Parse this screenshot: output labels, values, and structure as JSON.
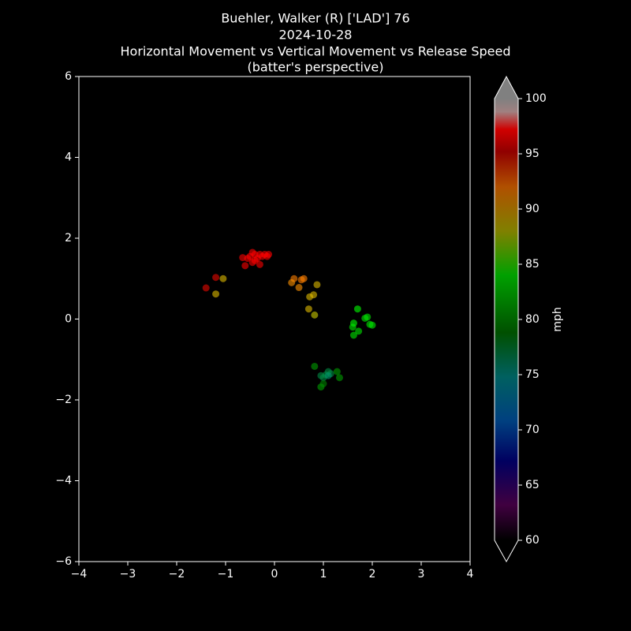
{
  "chart_data": {
    "type": "scatter",
    "title_lines": [
      "Buehler, Walker (R) ['LAD'] 76",
      "2024-10-28",
      "Horizontal Movement vs Vertical Movement vs Release Speed",
      "(batter's perspective)"
    ],
    "x": [
      -0.65,
      -0.6,
      -0.55,
      -0.5,
      -0.45,
      -0.4,
      -0.4,
      -0.35,
      -0.3,
      -0.3,
      -0.25,
      -0.2,
      -0.15,
      -0.12,
      -0.45,
      -1.4,
      -1.2,
      -1.05,
      -1.2,
      0.4,
      0.6,
      0.55,
      0.35,
      0.5,
      0.87,
      0.8,
      0.72,
      0.7,
      0.82,
      1.7,
      1.85,
      1.9,
      1.95,
      2.0,
      1.62,
      1.6,
      1.72,
      1.62,
      0.82,
      0.95,
      1.0,
      1.05,
      1.1,
      1.15,
      1.28,
      1.33,
      0.95,
      1.0,
      1.1
    ],
    "y": [
      1.52,
      1.32,
      1.5,
      1.55,
      1.65,
      1.6,
      1.45,
      1.5,
      1.35,
      1.6,
      1.55,
      1.6,
      1.55,
      1.6,
      1.4,
      0.77,
      1.03,
      1.0,
      0.62,
      1.0,
      1.0,
      0.97,
      0.9,
      0.78,
      0.85,
      0.6,
      0.55,
      0.25,
      0.1,
      0.25,
      0.02,
      0.05,
      -0.13,
      -0.15,
      -0.1,
      -0.2,
      -0.3,
      -0.4,
      -1.17,
      -1.4,
      -1.45,
      -1.38,
      -1.3,
      -1.35,
      -1.3,
      -1.45,
      -1.68,
      -1.6,
      -1.4
    ],
    "c": [
      97,
      96,
      97,
      97,
      97,
      97,
      97,
      97,
      96,
      97,
      97,
      97,
      97,
      97,
      97,
      95,
      95,
      89,
      89,
      92,
      92,
      92,
      91,
      91,
      89,
      89,
      89,
      89,
      88,
      84,
      83,
      83,
      83,
      83,
      84,
      83,
      83,
      83,
      80,
      77,
      77,
      77,
      77,
      77,
      80,
      80,
      80,
      79,
      76
    ],
    "xlim": [
      -4,
      4
    ],
    "xticks": [
      {
        "value": -4,
        "label": "−4"
      },
      {
        "value": -3,
        "label": "−3"
      },
      {
        "value": -2,
        "label": "−2"
      },
      {
        "value": -1,
        "label": "−1"
      },
      0,
      1,
      2,
      3,
      4
    ],
    "ylim": [
      -6,
      6
    ],
    "yticks": [
      {
        "value": -6,
        "label": "−6"
      },
      {
        "value": -4,
        "label": "−4"
      },
      {
        "value": -2,
        "label": "−2"
      },
      0,
      2,
      4,
      6
    ],
    "grid": false,
    "colorbar": {
      "label": "mph",
      "lim": [
        60,
        100
      ],
      "ticks": [
        60,
        65,
        70,
        75,
        80,
        85,
        90,
        95,
        100
      ]
    }
  }
}
